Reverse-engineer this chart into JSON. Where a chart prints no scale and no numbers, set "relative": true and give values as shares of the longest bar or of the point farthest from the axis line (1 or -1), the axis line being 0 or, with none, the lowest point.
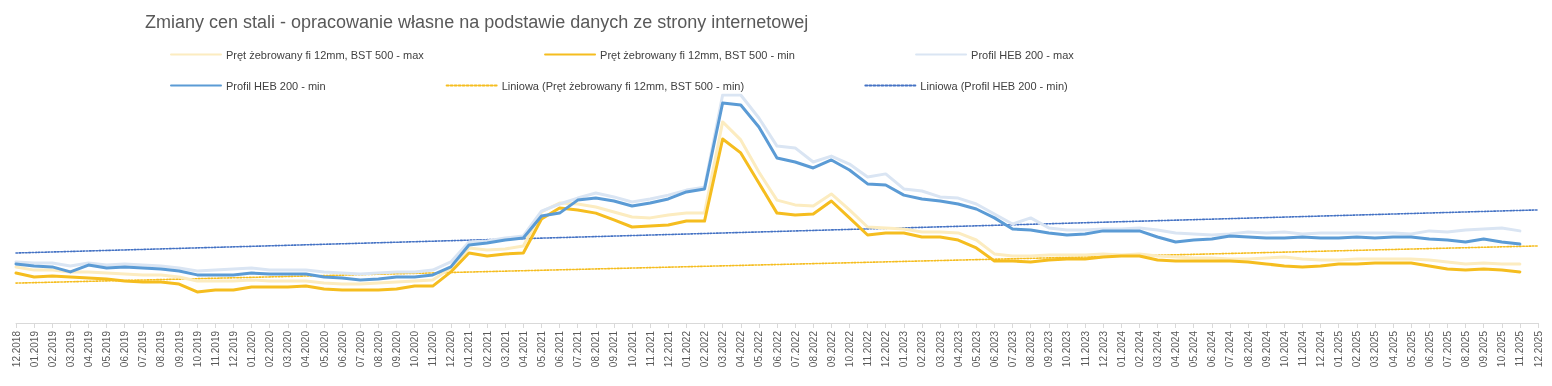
{
  "chart_data": {
    "type": "line",
    "title": "Zmiany cen stali - opracowanie własne na podstawie danych ze strony internetowej",
    "relative": true,
    "marker": "none",
    "grid": false,
    "legend": "top",
    "categories": [
      "12.2018",
      "01.2019",
      "02.2019",
      "03.2019",
      "04.2019",
      "05.2019",
      "06.2019",
      "07.2019",
      "08.2019",
      "09.2019",
      "10.2019",
      "11.2019",
      "12.2019",
      "01.2020",
      "02.2020",
      "03.2020",
      "04.2020",
      "05.2020",
      "06.2020",
      "07.2020",
      "08.2020",
      "09.2020",
      "10.2020",
      "11.2020",
      "12.2020",
      "01.2021",
      "02.2021",
      "03.2021",
      "04.2021",
      "05.2021",
      "06.2021",
      "07.2021",
      "08.2021",
      "09.2021",
      "10.2021",
      "11.2021",
      "12.2021",
      "01.2022",
      "02.2022",
      "03.2022",
      "04.2022",
      "05.2022",
      "06.2022",
      "07.2022",
      "08.2022",
      "09.2022",
      "10.2022",
      "11.2022",
      "12.2022",
      "01.2023",
      "02.2023",
      "03.2023",
      "04.2023",
      "05.2023",
      "06.2023",
      "07.2023",
      "08.2023",
      "09.2023",
      "10.2023",
      "11.2023",
      "12.2023",
      "01.2024",
      "02.2024",
      "03.2024",
      "04.2024",
      "05.2024",
      "06.2024",
      "07.2024",
      "08.2024",
      "09.2024",
      "10.2024",
      "11.2024",
      "12.2024",
      "01.2025",
      "02.2025",
      "03.2025",
      "04.2025",
      "05.2025",
      "06.2025",
      "07.2025",
      "08.2025",
      "09.2025",
      "10.2025",
      "11.2025",
      "12.2025"
    ],
    "series": [
      {
        "name": "Pręt żebrowany fi 12mm, BST 500 - max",
        "color": "#fcecc0",
        "line_style": "solid",
        "values": [
          0.246,
          0.232,
          0.232,
          0.224,
          0.224,
          0.219,
          0.215,
          0.211,
          0.211,
          0.202,
          0.184,
          0.184,
          0.184,
          0.189,
          0.184,
          0.184,
          0.184,
          0.175,
          0.171,
          0.171,
          0.175,
          0.18,
          0.184,
          0.189,
          0.241,
          0.329,
          0.32,
          0.325,
          0.338,
          0.487,
          0.526,
          0.522,
          0.509,
          0.487,
          0.465,
          0.461,
          0.474,
          0.482,
          0.482,
          0.882,
          0.803,
          0.662,
          0.539,
          0.518,
          0.513,
          0.566,
          0.496,
          0.421,
          0.417,
          0.412,
          0.399,
          0.399,
          0.395,
          0.364,
          0.303,
          0.294,
          0.294,
          0.298,
          0.298,
          0.298,
          0.303,
          0.298,
          0.303,
          0.294,
          0.289,
          0.285,
          0.285,
          0.281,
          0.281,
          0.285,
          0.289,
          0.281,
          0.276,
          0.276,
          0.281,
          0.281,
          0.281,
          0.281,
          0.276,
          0.268,
          0.259,
          0.263,
          0.259,
          0.259,
          null
        ]
      },
      {
        "name": "Pręt żebrowany fi 12mm, BST 500 - min",
        "color": "#f5bd1f",
        "line_style": "solid",
        "values": [
          0.219,
          0.202,
          0.206,
          0.202,
          0.197,
          0.193,
          0.184,
          0.18,
          0.18,
          0.171,
          0.136,
          0.145,
          0.145,
          0.158,
          0.158,
          0.158,
          0.162,
          0.149,
          0.145,
          0.145,
          0.145,
          0.149,
          0.162,
          0.162,
          0.224,
          0.307,
          0.294,
          0.303,
          0.307,
          0.456,
          0.504,
          0.496,
          0.482,
          0.452,
          0.421,
          0.425,
          0.43,
          0.447,
          0.447,
          0.807,
          0.746,
          0.614,
          0.482,
          0.474,
          0.478,
          0.535,
          0.461,
          0.386,
          0.395,
          0.395,
          0.377,
          0.377,
          0.364,
          0.329,
          0.272,
          0.272,
          0.268,
          0.276,
          0.281,
          0.281,
          0.289,
          0.294,
          0.294,
          0.276,
          0.272,
          0.272,
          0.272,
          0.272,
          0.268,
          0.259,
          0.25,
          0.246,
          0.25,
          0.259,
          0.259,
          0.263,
          0.263,
          0.263,
          0.25,
          0.237,
          0.232,
          0.237,
          0.232,
          0.224,
          null
        ]
      },
      {
        "name": "Profil HEB 200 - max",
        "color": "#dae5f3",
        "line_style": "solid",
        "values": [
          0.268,
          0.263,
          0.263,
          0.25,
          0.263,
          0.254,
          0.259,
          0.254,
          0.25,
          0.241,
          0.228,
          0.232,
          0.237,
          0.241,
          0.232,
          0.232,
          0.232,
          0.224,
          0.219,
          0.215,
          0.219,
          0.224,
          0.224,
          0.232,
          0.268,
          0.355,
          0.36,
          0.373,
          0.382,
          0.491,
          0.522,
          0.548,
          0.57,
          0.553,
          0.531,
          0.544,
          0.561,
          0.583,
          0.596,
          1,
          1,
          0.899,
          0.776,
          0.768,
          0.706,
          0.732,
          0.697,
          0.64,
          0.654,
          0.588,
          0.579,
          0.553,
          0.548,
          0.522,
          0.478,
          0.434,
          0.461,
          0.417,
          0.408,
          0.408,
          0.412,
          0.412,
          0.417,
          0.408,
          0.395,
          0.39,
          0.386,
          0.39,
          0.399,
          0.395,
          0.399,
          0.39,
          0.395,
          0.395,
          0.395,
          0.395,
          0.395,
          0.39,
          0.404,
          0.399,
          0.408,
          0.412,
          0.417,
          0.404,
          null
        ]
      },
      {
        "name": "Profil HEB 200 - min",
        "color": "#5b9bd5",
        "line_style": "solid",
        "values": [
          0.259,
          0.25,
          0.246,
          0.224,
          0.254,
          0.241,
          0.246,
          0.241,
          0.237,
          0.228,
          0.211,
          0.211,
          0.211,
          0.219,
          0.215,
          0.215,
          0.215,
          0.202,
          0.197,
          0.189,
          0.193,
          0.202,
          0.202,
          0.211,
          0.246,
          0.342,
          0.351,
          0.364,
          0.373,
          0.469,
          0.482,
          0.539,
          0.548,
          0.535,
          0.513,
          0.526,
          0.544,
          0.575,
          0.588,
          0.965,
          0.956,
          0.86,
          0.724,
          0.706,
          0.68,
          0.715,
          0.671,
          0.61,
          0.605,
          0.561,
          0.544,
          0.535,
          0.522,
          0.5,
          0.461,
          0.412,
          0.408,
          0.395,
          0.386,
          0.39,
          0.404,
          0.404,
          0.404,
          0.377,
          0.355,
          0.364,
          0.368,
          0.382,
          0.377,
          0.373,
          0.373,
          0.377,
          0.373,
          0.373,
          0.377,
          0.373,
          0.377,
          0.377,
          0.368,
          0.364,
          0.355,
          0.368,
          0.355,
          0.346,
          null
        ]
      },
      {
        "name": "Liniowa (Pręt żebrowany fi 12mm, BST 500 - min)",
        "color": "#f5bd1f",
        "line_style": "dotted",
        "x": [
          "12.2018",
          "12.2025"
        ],
        "values": [
          0.175,
          0.338
        ]
      },
      {
        "name": "Liniowa (Profil HEB 200 - min)",
        "color": "#4472c4",
        "line_style": "dotted",
        "x": [
          "12.2018",
          "12.2025"
        ],
        "values": [
          0.307,
          0.496
        ]
      }
    ]
  }
}
